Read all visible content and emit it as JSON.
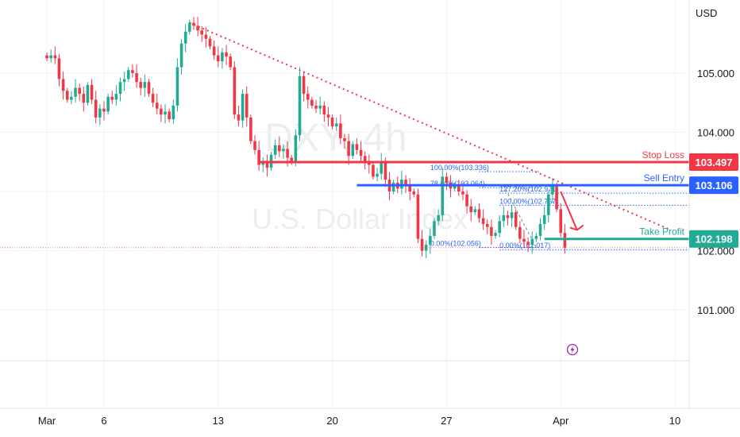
{
  "watermark": {
    "symbol": "DXY, 4h",
    "name": "U.S. Dollar Index"
  },
  "currency_label": "USD",
  "chart_data": {
    "type": "candlestick",
    "title": "",
    "ylim": [
      100.0,
      105.8
    ],
    "yticks": [
      {
        "value": 101.0,
        "label": "101.000"
      },
      {
        "value": 102.0,
        "label": "102.000"
      },
      {
        "value": 103.0,
        "label": ""
      },
      {
        "value": 104.0,
        "label": "104.000"
      },
      {
        "value": 105.0,
        "label": "105.000"
      }
    ],
    "xticks": [
      {
        "label": "Mar",
        "bar": 0
      },
      {
        "label": "6",
        "bar": 14
      },
      {
        "label": "13",
        "bar": 42
      },
      {
        "label": "20",
        "bar": 70
      },
      {
        "label": "27",
        "bar": 98
      },
      {
        "label": "Apr",
        "bar": 126
      },
      {
        "label": "10",
        "bar": 154
      }
    ],
    "bar_range": [
      -11.5,
      157.5
    ],
    "closes": [
      105.25,
      105.3,
      105.25,
      104.9,
      104.7,
      104.55,
      104.6,
      104.75,
      104.65,
      104.5,
      104.8,
      104.55,
      104.25,
      104.4,
      104.35,
      104.6,
      104.55,
      104.65,
      104.85,
      104.9,
      105.05,
      105.0,
      104.85,
      104.75,
      104.85,
      104.65,
      104.5,
      104.4,
      104.3,
      104.35,
      104.22,
      104.45,
      105.1,
      105.5,
      105.7,
      105.85,
      105.8,
      105.72,
      105.65,
      105.58,
      105.45,
      105.3,
      105.2,
      105.35,
      105.28,
      105.1,
      104.3,
      104.2,
      104.65,
      104.25,
      103.85,
      103.7,
      103.45,
      103.5,
      103.4,
      103.62,
      103.78,
      103.68,
      103.72,
      103.57,
      103.5,
      103.95,
      104.95,
      104.65,
      104.55,
      104.45,
      104.4,
      104.45,
      104.3,
      104.25,
      104.1,
      104.15,
      103.9,
      103.85,
      103.6,
      103.8,
      103.7,
      103.6,
      103.5,
      103.45,
      103.25,
      103.3,
      103.5,
      103.2,
      103.0,
      103.15,
      103.05,
      103.2,
      103.1,
      103.0,
      102.95,
      102.2,
      102.0,
      102.1,
      102.25,
      102.5,
      102.6,
      103.25,
      103.15,
      103.05,
      103.1,
      103.0,
      102.95,
      102.75,
      102.65,
      102.7,
      102.55,
      102.45,
      102.4,
      102.25,
      102.3,
      102.5,
      102.6,
      102.55,
      102.65,
      102.4,
      102.2,
      102.15,
      102.1,
      102.2,
      102.25,
      102.45,
      102.6,
      102.95,
      103.1,
      102.7,
      102.3,
      102.05
    ],
    "series": [
      {
        "name": "Stop Loss",
        "value": 103.497,
        "color": "#f23645"
      },
      {
        "name": "Sell Entry",
        "value": 103.106,
        "color": "#2962ff"
      },
      {
        "name": "Take Profit",
        "value": 102.198,
        "color": "#22ab94"
      }
    ],
    "last_price_line": 102.05,
    "fib_levels": [
      {
        "label": "100.00%(103.336)",
        "value": 103.336
      },
      {
        "label": "78.60%(103.064)",
        "value": 103.064
      },
      {
        "label": "0.00%(102.056)",
        "value": 102.056
      },
      {
        "label": "127.20%(102.971)",
        "value": 102.971
      },
      {
        "label": "100.00%(102.767)",
        "value": 102.767
      },
      {
        "label": "0.00%(102.017)",
        "value": 102.017
      }
    ]
  },
  "colors": {
    "up": "#22ab94",
    "down": "#f23645",
    "entry": "#2962ff",
    "lightning": "#9c27b0"
  },
  "icons": {
    "flash": "lightning-icon"
  }
}
